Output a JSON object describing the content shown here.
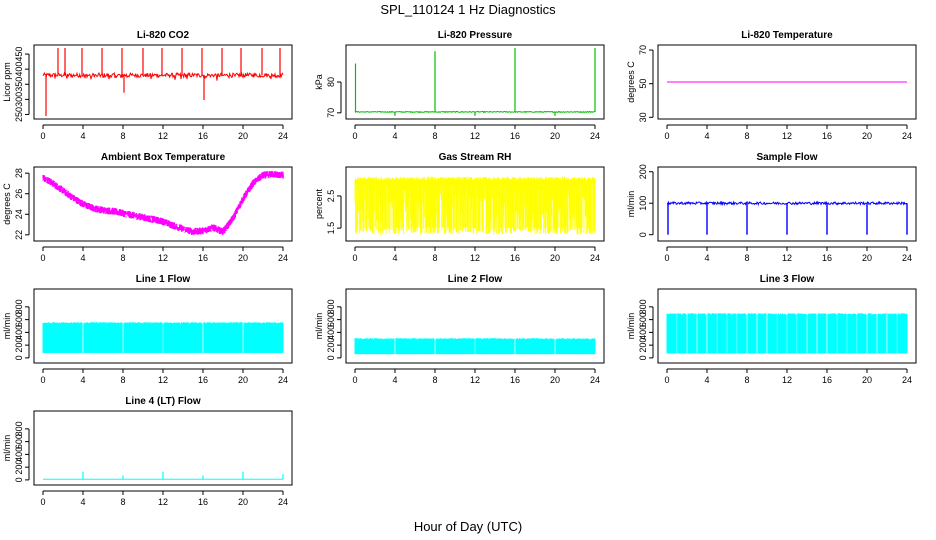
{
  "figure": {
    "title": "SPL_110124  1 Hz Diagnostics",
    "xlabel": "Hour of Day (UTC)"
  },
  "chart_data": [
    {
      "id": "p1",
      "type": "line",
      "title": "Li-820 CO2",
      "ylabel": "Licor ppm",
      "color": "#ff0000",
      "style": "co2",
      "xlim": [
        0,
        24
      ],
      "xticks": [
        0,
        4,
        8,
        12,
        16,
        20,
        24
      ],
      "ylim": [
        235,
        480
      ],
      "yticks": [
        250,
        300,
        350,
        400,
        450
      ],
      "baseline": 380,
      "noise": 7,
      "spikes": [
        {
          "x": 0.3,
          "y": 245
        },
        {
          "x": 1.5,
          "y": 470
        },
        {
          "x": 2.2,
          "y": 470
        },
        {
          "x": 3.9,
          "y": 470
        },
        {
          "x": 5.9,
          "y": 470
        },
        {
          "x": 7.9,
          "y": 470
        },
        {
          "x": 8.1,
          "y": 322
        },
        {
          "x": 10.0,
          "y": 470
        },
        {
          "x": 11.9,
          "y": 470
        },
        {
          "x": 13.9,
          "y": 470
        },
        {
          "x": 15.9,
          "y": 470
        },
        {
          "x": 16.1,
          "y": 298
        },
        {
          "x": 17.9,
          "y": 470
        },
        {
          "x": 19.8,
          "y": 470
        },
        {
          "x": 21.9,
          "y": 470
        },
        {
          "x": 23.7,
          "y": 470
        }
      ]
    },
    {
      "id": "p2",
      "type": "line",
      "title": "Li-820 Pressure",
      "ylabel": "kPa",
      "color": "#00c000",
      "style": "pressure",
      "xlim": [
        0,
        24
      ],
      "xticks": [
        0,
        4,
        8,
        12,
        16,
        20,
        24
      ],
      "ylim": [
        68,
        92
      ],
      "yticks": [
        70,
        80
      ],
      "baseline": 70.3,
      "noise": 0.15,
      "spikes": [
        {
          "x": 0.05,
          "y": 86
        },
        {
          "x": 8.0,
          "y": 90
        },
        {
          "x": 16.0,
          "y": 91
        },
        {
          "x": 24.0,
          "y": 91
        },
        {
          "x": 4.0,
          "y": 69
        },
        {
          "x": 12.0,
          "y": 69
        },
        {
          "x": 20.0,
          "y": 69
        }
      ]
    },
    {
      "id": "p3",
      "type": "line",
      "title": "Li-820 Temperature",
      "ylabel": "degrees C",
      "color": "#ff00ff",
      "style": "flat",
      "xlim": [
        0,
        24
      ],
      "xticks": [
        0,
        4,
        8,
        12,
        16,
        20,
        24
      ],
      "ylim": [
        29,
        73
      ],
      "yticks": [
        30,
        50,
        70
      ],
      "baseline": 51,
      "noise": 0
    },
    {
      "id": "p4",
      "type": "line",
      "title": "Ambient Box Temperature",
      "ylabel": "degrees C",
      "color": "#ff00ff",
      "style": "curve",
      "xlim": [
        0,
        24
      ],
      "xticks": [
        0,
        4,
        8,
        12,
        16,
        20,
        24
      ],
      "ylim": [
        21.4,
        28.6
      ],
      "yticks": [
        22,
        24,
        26,
        28
      ],
      "curve": {
        "x": [
          0,
          1,
          2,
          3,
          4,
          5,
          6,
          7,
          8,
          9,
          10,
          11,
          12,
          13,
          14,
          15,
          16,
          17,
          18,
          19,
          20,
          21,
          22,
          23,
          24
        ],
        "y": [
          27.6,
          27.0,
          26.3,
          25.6,
          25.0,
          24.6,
          24.4,
          24.3,
          24.1,
          23.9,
          23.7,
          23.5,
          23.3,
          22.9,
          22.6,
          22.3,
          22.4,
          22.7,
          22.3,
          23.6,
          25.5,
          27.0,
          27.8,
          27.9,
          27.8
        ]
      },
      "noise": 0.35
    },
    {
      "id": "p5",
      "type": "line",
      "title": "Gas Stream RH",
      "ylabel": "percent",
      "color": "#ffff00",
      "style": "dense",
      "xlim": [
        0,
        24
      ],
      "xticks": [
        0,
        4,
        8,
        12,
        16,
        20,
        24
      ],
      "ylim": [
        1.1,
        3.4
      ],
      "yticks": [
        1.5,
        2.5
      ],
      "top": 3.1,
      "bottom": 1.3
    },
    {
      "id": "p6",
      "type": "line",
      "title": "Sample Flow",
      "ylabel": "ml/min",
      "color": "#0000ff",
      "style": "flow",
      "xlim": [
        0,
        24
      ],
      "xticks": [
        0,
        4,
        8,
        12,
        16,
        20,
        24
      ],
      "ylim": [
        -20,
        215
      ],
      "yticks": [
        0,
        100,
        200
      ],
      "baseline": 100,
      "noise": 4,
      "dips": [
        0.1,
        4,
        8,
        12,
        16,
        20,
        24
      ],
      "dip_y": 0
    },
    {
      "id": "p7",
      "type": "area",
      "title": "Line 1 Flow",
      "ylabel": "ml/min",
      "color": "#00ffff",
      "style": "block",
      "xlim": [
        0,
        24
      ],
      "xticks": [
        0,
        4,
        8,
        12,
        16,
        20,
        24
      ],
      "ylim": [
        -80,
        1080
      ],
      "yticks": [
        0,
        200,
        400,
        600,
        800
      ],
      "top": 560,
      "bottom": 80,
      "gaps": [
        4,
        8,
        12,
        16,
        20
      ]
    },
    {
      "id": "p8",
      "type": "area",
      "title": "Line 2 Flow",
      "ylabel": "ml/min",
      "color": "#00ffff",
      "style": "block",
      "xlim": [
        0,
        24
      ],
      "xticks": [
        0,
        4,
        8,
        12,
        16,
        20,
        24
      ],
      "ylim": [
        -80,
        1080
      ],
      "yticks": [
        0,
        200,
        400,
        600,
        800
      ],
      "top": 310,
      "bottom": 60,
      "gaps": [
        4,
        8,
        12,
        16,
        20
      ]
    },
    {
      "id": "p9",
      "type": "area",
      "title": "Line 3 Flow",
      "ylabel": "ml/min",
      "color": "#00ffff",
      "style": "block",
      "xlim": [
        0,
        24
      ],
      "xticks": [
        0,
        4,
        8,
        12,
        16,
        20,
        24
      ],
      "ylim": [
        -80,
        1080
      ],
      "yticks": [
        0,
        200,
        400,
        600,
        800
      ],
      "top": 700,
      "bottom": 70,
      "gaps": [
        1,
        2,
        3,
        4,
        5,
        6,
        7,
        8,
        9,
        10,
        11,
        12,
        13,
        14,
        15,
        16,
        17,
        18,
        19,
        20,
        21,
        22,
        23
      ]
    },
    {
      "id": "p10",
      "type": "line",
      "title": "Line 4 (LT) Flow",
      "ylabel": "ml/min",
      "color": "#00ffff",
      "style": "low",
      "xlim": [
        0,
        24
      ],
      "xticks": [
        0,
        4,
        8,
        12,
        16,
        20,
        24
      ],
      "ylim": [
        -80,
        1080
      ],
      "yticks": [
        0,
        200,
        400,
        600,
        800
      ],
      "baseline": 10,
      "spikes": [
        {
          "x": 4,
          "y": 130
        },
        {
          "x": 8,
          "y": 70
        },
        {
          "x": 12,
          "y": 130
        },
        {
          "x": 16,
          "y": 70
        },
        {
          "x": 20,
          "y": 130
        },
        {
          "x": 24,
          "y": 90
        }
      ]
    }
  ]
}
